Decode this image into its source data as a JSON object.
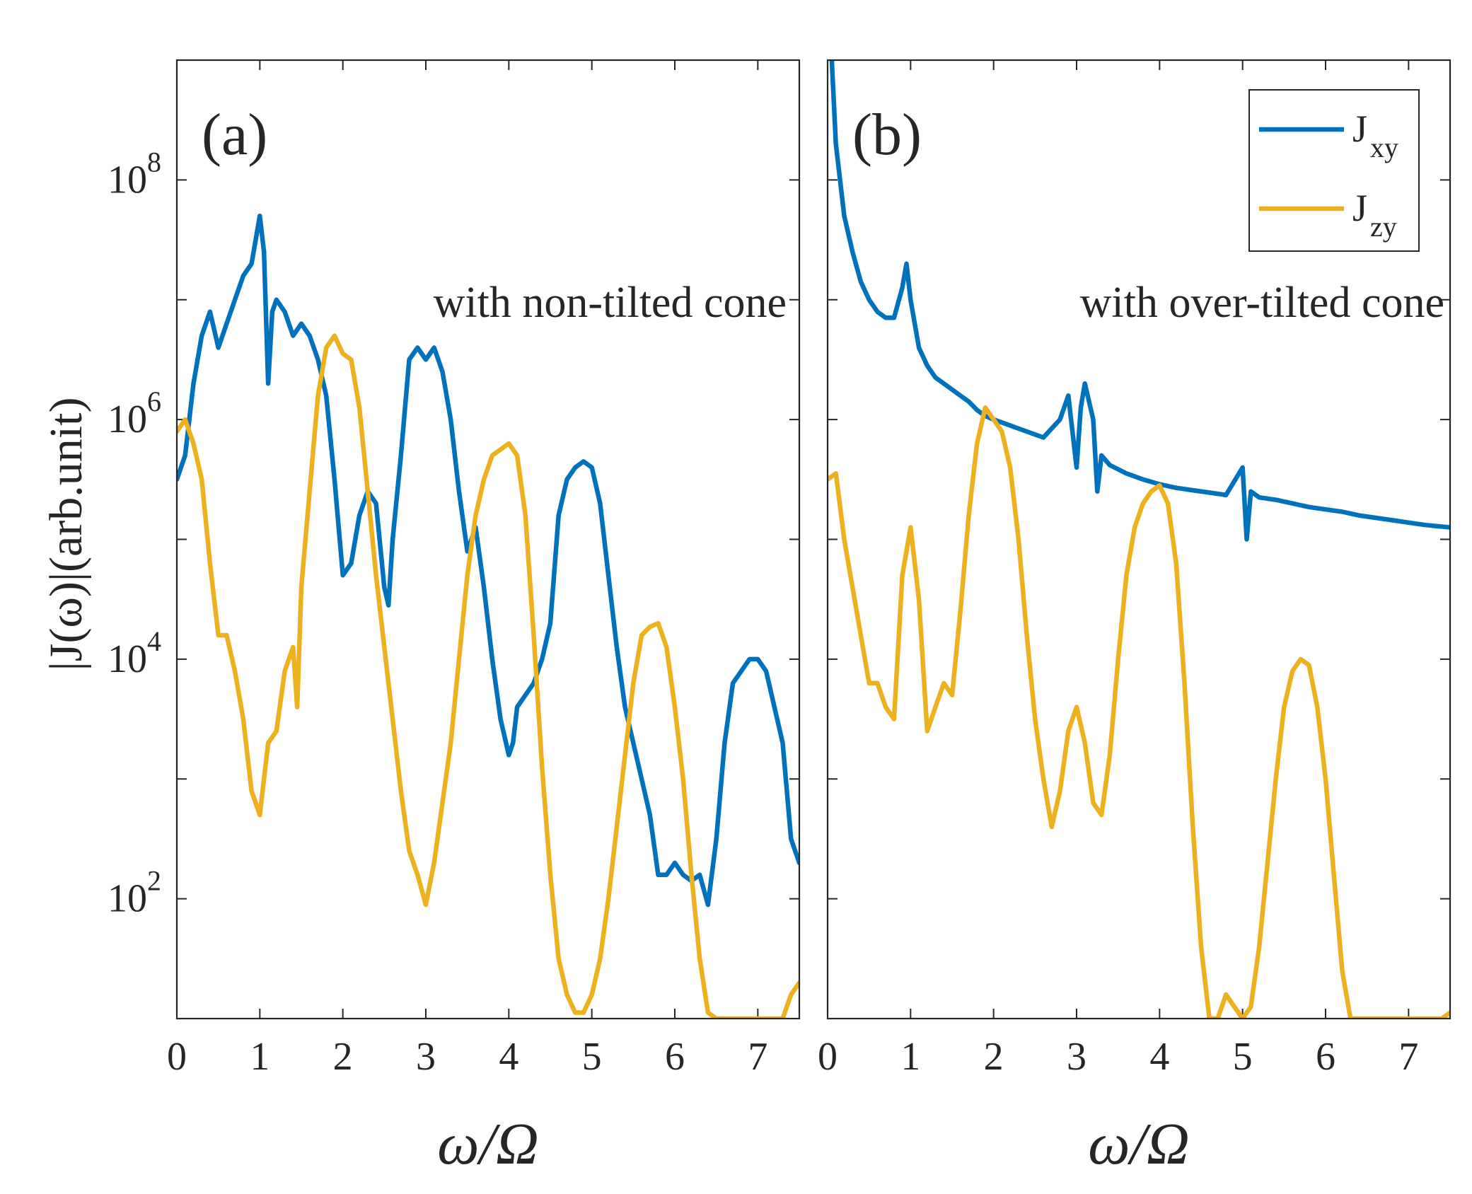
{
  "figure": {
    "ylabel": "|J(ω)|(arb.unit)",
    "xlabel": "ω/Ω",
    "legend": [
      {
        "main": "J",
        "sub": "xy",
        "color": "#0072BD"
      },
      {
        "main": "J",
        "sub": "zy",
        "color": "#EDB120"
      }
    ]
  },
  "chart_data": [
    {
      "type": "line",
      "panel": "(a)",
      "annotation": "with non-tilted cone",
      "xlabel": "ω/Ω",
      "ylabel": "|J(ω)|(arb.unit)",
      "xlim": [
        0,
        7.5
      ],
      "ylim_log10": [
        1,
        9
      ],
      "yscale": "log",
      "xticks": [
        "0",
        "1",
        "2",
        "3",
        "4",
        "5",
        "6",
        "7"
      ],
      "yticks": [
        {
          "base": "10",
          "exp": "2"
        },
        {
          "base": "10",
          "exp": "4"
        },
        {
          "base": "10",
          "exp": "6"
        },
        {
          "base": "10",
          "exp": "8"
        }
      ],
      "series": [
        {
          "name": "Jxy",
          "color": "#0072BD",
          "x": [
            0,
            0.1,
            0.2,
            0.3,
            0.4,
            0.5,
            0.6,
            0.7,
            0.8,
            0.9,
            1.0,
            1.05,
            1.1,
            1.15,
            1.2,
            1.3,
            1.4,
            1.5,
            1.6,
            1.7,
            1.8,
            1.9,
            2.0,
            2.1,
            2.2,
            2.3,
            2.4,
            2.5,
            2.55,
            2.6,
            2.7,
            2.8,
            2.9,
            3.0,
            3.1,
            3.2,
            3.3,
            3.4,
            3.5,
            3.6,
            3.7,
            3.8,
            3.9,
            4.0,
            4.05,
            4.1,
            4.2,
            4.3,
            4.4,
            4.5,
            4.6,
            4.7,
            4.8,
            4.9,
            5.0,
            5.1,
            5.2,
            5.3,
            5.4,
            5.5,
            5.6,
            5.7,
            5.8,
            5.9,
            6.0,
            6.1,
            6.2,
            6.3,
            6.4,
            6.5,
            6.6,
            6.7,
            6.8,
            6.9,
            7.0,
            7.1,
            7.2,
            7.3,
            7.4,
            7.5
          ],
          "log10_y": [
            5.5,
            5.7,
            6.3,
            6.7,
            6.9,
            6.6,
            6.8,
            7.0,
            7.2,
            7.3,
            7.7,
            7.4,
            6.3,
            6.9,
            7.0,
            6.9,
            6.7,
            6.8,
            6.7,
            6.5,
            6.2,
            5.5,
            4.7,
            4.8,
            5.2,
            5.4,
            5.3,
            4.6,
            4.45,
            5.0,
            5.7,
            6.5,
            6.6,
            6.5,
            6.6,
            6.4,
            6.0,
            5.4,
            4.9,
            5.1,
            4.6,
            4.0,
            3.5,
            3.2,
            3.3,
            3.6,
            3.7,
            3.8,
            4.0,
            4.3,
            5.2,
            5.5,
            5.6,
            5.65,
            5.6,
            5.3,
            4.7,
            4.1,
            3.6,
            3.3,
            3.0,
            2.7,
            2.2,
            2.2,
            2.3,
            2.2,
            2.15,
            2.2,
            1.95,
            2.5,
            3.3,
            3.8,
            3.9,
            4.0,
            4.0,
            3.9,
            3.6,
            3.3,
            2.5,
            2.3
          ]
        },
        {
          "name": "Jzy",
          "color": "#EDB120",
          "x": [
            0,
            0.1,
            0.2,
            0.3,
            0.4,
            0.5,
            0.6,
            0.7,
            0.8,
            0.9,
            1.0,
            1.1,
            1.2,
            1.3,
            1.4,
            1.45,
            1.5,
            1.6,
            1.7,
            1.8,
            1.9,
            2.0,
            2.1,
            2.2,
            2.3,
            2.4,
            2.5,
            2.6,
            2.7,
            2.8,
            2.9,
            3.0,
            3.1,
            3.2,
            3.3,
            3.4,
            3.5,
            3.6,
            3.7,
            3.8,
            3.9,
            4.0,
            4.1,
            4.2,
            4.3,
            4.4,
            4.5,
            4.6,
            4.7,
            4.8,
            4.9,
            5.0,
            5.1,
            5.2,
            5.3,
            5.4,
            5.5,
            5.6,
            5.7,
            5.8,
            5.9,
            6.0,
            6.1,
            6.2,
            6.3,
            6.4,
            6.5,
            6.6,
            6.7,
            6.8,
            6.9,
            7.0,
            7.1,
            7.2,
            7.3,
            7.4,
            7.5
          ],
          "log10_y": [
            5.9,
            6.0,
            5.8,
            5.5,
            4.8,
            4.2,
            4.2,
            3.9,
            3.5,
            2.9,
            2.7,
            3.3,
            3.4,
            3.9,
            4.1,
            3.6,
            4.6,
            5.4,
            6.2,
            6.6,
            6.7,
            6.55,
            6.5,
            6.1,
            5.4,
            4.7,
            4.1,
            3.5,
            2.9,
            2.4,
            2.2,
            1.95,
            2.3,
            2.8,
            3.3,
            4.0,
            4.7,
            5.2,
            5.5,
            5.7,
            5.75,
            5.8,
            5.7,
            5.2,
            4.2,
            3.1,
            2.2,
            1.5,
            1.2,
            1.05,
            1.05,
            1.2,
            1.5,
            2.0,
            2.6,
            3.2,
            3.8,
            4.2,
            4.27,
            4.3,
            4.1,
            3.6,
            3.0,
            2.2,
            1.5,
            1.05,
            1.0,
            1.0,
            1.0,
            1.0,
            1.0,
            1.0,
            1.0,
            1.0,
            1.0,
            1.2,
            1.3
          ]
        }
      ]
    },
    {
      "type": "line",
      "panel": "(b)",
      "annotation": "with over-tilted cone",
      "xlabel": "ω/Ω",
      "xlim": [
        0,
        7.5
      ],
      "ylim_log10": [
        1,
        9
      ],
      "yscale": "log",
      "xticks": [
        "0",
        "1",
        "2",
        "3",
        "4",
        "5",
        "6",
        "7"
      ],
      "series": [
        {
          "name": "Jxy",
          "color": "#0072BD",
          "x": [
            0.05,
            0.1,
            0.2,
            0.3,
            0.4,
            0.5,
            0.6,
            0.7,
            0.8,
            0.9,
            0.95,
            1.0,
            1.1,
            1.2,
            1.3,
            1.4,
            1.5,
            1.6,
            1.7,
            1.8,
            1.9,
            2.0,
            2.2,
            2.4,
            2.6,
            2.8,
            2.9,
            3.0,
            3.05,
            3.1,
            3.2,
            3.25,
            3.3,
            3.4,
            3.6,
            3.8,
            4.0,
            4.2,
            4.4,
            4.6,
            4.8,
            5.0,
            5.05,
            5.1,
            5.2,
            5.4,
            5.6,
            5.8,
            6.0,
            6.2,
            6.4,
            6.6,
            6.8,
            7.0,
            7.2,
            7.5
          ],
          "log10_y": [
            9.0,
            8.3,
            7.7,
            7.4,
            7.15,
            7.0,
            6.9,
            6.85,
            6.85,
            7.1,
            7.3,
            7.0,
            6.6,
            6.45,
            6.35,
            6.3,
            6.25,
            6.2,
            6.15,
            6.08,
            6.03,
            6.0,
            5.95,
            5.9,
            5.85,
            6.0,
            6.2,
            5.6,
            6.1,
            6.3,
            6.0,
            5.4,
            5.7,
            5.62,
            5.55,
            5.5,
            5.46,
            5.43,
            5.41,
            5.39,
            5.37,
            5.6,
            5.0,
            5.4,
            5.35,
            5.33,
            5.3,
            5.27,
            5.25,
            5.23,
            5.2,
            5.18,
            5.16,
            5.14,
            5.12,
            5.1
          ]
        },
        {
          "name": "Jzy",
          "color": "#EDB120",
          "x": [
            0,
            0.1,
            0.2,
            0.3,
            0.4,
            0.5,
            0.6,
            0.7,
            0.8,
            0.9,
            1.0,
            1.1,
            1.2,
            1.3,
            1.4,
            1.5,
            1.6,
            1.7,
            1.8,
            1.9,
            2.0,
            2.1,
            2.2,
            2.3,
            2.4,
            2.5,
            2.6,
            2.7,
            2.8,
            2.9,
            3.0,
            3.1,
            3.2,
            3.3,
            3.4,
            3.5,
            3.6,
            3.7,
            3.8,
            3.9,
            4.0,
            4.1,
            4.2,
            4.3,
            4.4,
            4.5,
            4.6,
            4.7,
            4.8,
            4.9,
            5.0,
            5.1,
            5.2,
            5.3,
            5.4,
            5.5,
            5.6,
            5.7,
            5.8,
            5.9,
            6.0,
            6.1,
            6.2,
            6.3,
            6.4,
            6.5,
            6.6,
            6.7,
            6.8,
            7.0,
            7.2,
            7.4,
            7.5
          ],
          "log10_y": [
            5.5,
            5.55,
            5.0,
            4.6,
            4.2,
            3.8,
            3.8,
            3.6,
            3.5,
            4.7,
            5.1,
            4.5,
            3.4,
            3.6,
            3.8,
            3.7,
            4.4,
            5.2,
            5.8,
            6.1,
            6.0,
            5.9,
            5.6,
            5.0,
            4.2,
            3.5,
            3.0,
            2.6,
            2.9,
            3.4,
            3.6,
            3.3,
            2.8,
            2.7,
            3.2,
            4.0,
            4.7,
            5.1,
            5.3,
            5.4,
            5.45,
            5.3,
            4.8,
            3.8,
            2.6,
            1.6,
            1.0,
            1.0,
            1.2,
            1.1,
            1.0,
            1.1,
            1.6,
            2.3,
            3.0,
            3.6,
            3.9,
            4.0,
            3.95,
            3.6,
            3.0,
            2.2,
            1.4,
            1.0,
            1.0,
            1.0,
            1.0,
            1.0,
            1.0,
            1.0,
            1.0,
            1.0,
            1.05
          ]
        }
      ]
    }
  ]
}
